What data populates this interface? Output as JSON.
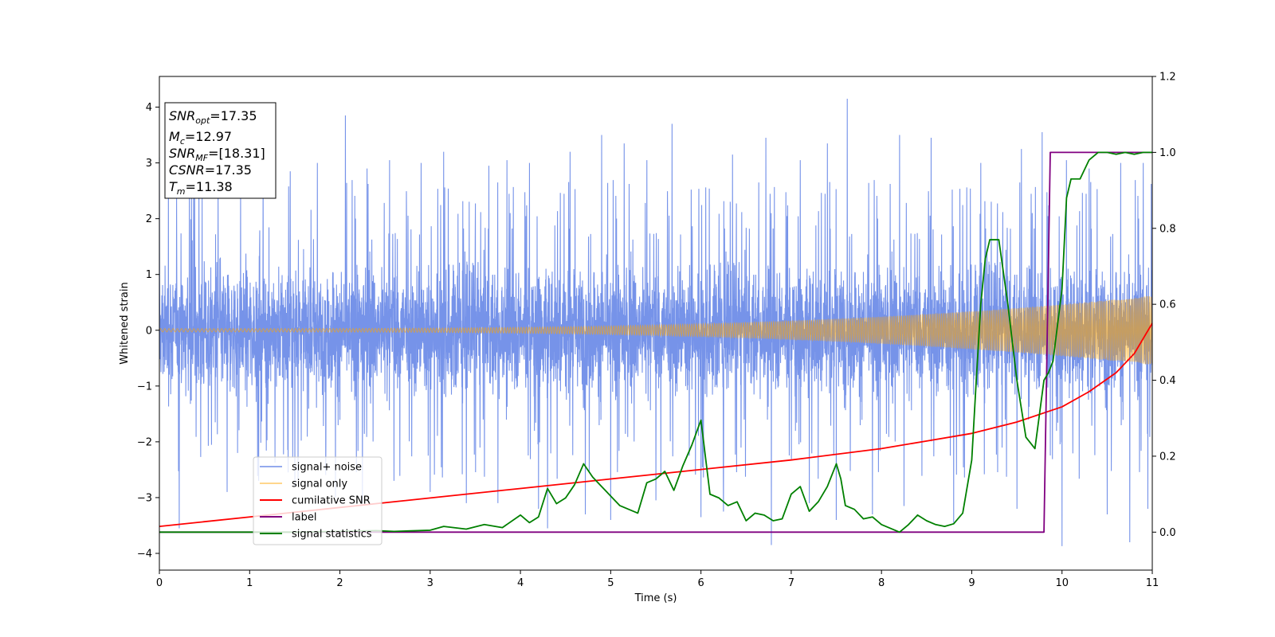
{
  "chart_data": {
    "type": "line",
    "xlabel": "Time (s)",
    "ylabel": "Whitened strain",
    "xlim": [
      0,
      11
    ],
    "ylim": [
      -4.3,
      4.55
    ],
    "y2lim": [
      -0.1,
      1.2
    ],
    "xticks": [
      "0",
      "1",
      "2",
      "3",
      "4",
      "5",
      "6",
      "7",
      "8",
      "9",
      "10",
      "11"
    ],
    "yticks": [
      "−4",
      "−3",
      "−2",
      "−1",
      "0",
      "1",
      "2",
      "3",
      "4"
    ],
    "y2ticks": [
      "0.0",
      "0.2",
      "0.4",
      "0.6",
      "0.8",
      "1.0",
      "1.2"
    ],
    "grid": false,
    "legend_position": "lower-left",
    "annotation": {
      "lines": [
        {
          "sym": "SNR",
          "sub": "opt",
          "val": "=17.35"
        },
        {
          "sym": "M",
          "sub": "c",
          "val": "=12.97"
        },
        {
          "sym": "SNR",
          "sub": "MF",
          "val": "=[18.31]"
        },
        {
          "sym": "CSNR",
          "sub": "",
          "val": "=17.35"
        },
        {
          "sym": "T",
          "sub": "m",
          "val": "=11.38"
        }
      ]
    },
    "series": [
      {
        "name": "signal+ noise",
        "color": "#4169e1",
        "axis": "left",
        "kind": "noise",
        "envelope_typical": 1.7,
        "envelope_peak": 4.15,
        "peaks": [
          [
            0.0,
            3.1
          ],
          [
            0.1,
            2.9
          ],
          [
            0.38,
            2.8
          ],
          [
            0.65,
            2.7
          ],
          [
            0.9,
            2.6
          ],
          [
            1.15,
            3.0
          ],
          [
            1.45,
            2.85
          ],
          [
            1.75,
            3.0
          ],
          [
            2.06,
            3.85
          ],
          [
            2.3,
            2.9
          ],
          [
            2.55,
            3.05
          ],
          [
            2.9,
            3.0
          ],
          [
            3.15,
            3.2
          ],
          [
            3.4,
            3.3
          ],
          [
            3.65,
            2.95
          ],
          [
            3.85,
            3.05
          ],
          [
            4.1,
            3.0
          ],
          [
            4.55,
            3.2
          ],
          [
            4.9,
            3.5
          ],
          [
            5.15,
            3.35
          ],
          [
            5.4,
            3.05
          ],
          [
            5.68,
            3.7
          ],
          [
            6.0,
            3.45
          ],
          [
            6.35,
            3.15
          ],
          [
            6.72,
            3.45
          ],
          [
            7.1,
            3.05
          ],
          [
            7.4,
            3.35
          ],
          [
            7.62,
            4.15
          ],
          [
            7.9,
            3.25
          ],
          [
            8.2,
            3.5
          ],
          [
            8.55,
            3.45
          ],
          [
            8.8,
            3.5
          ],
          [
            9.1,
            3.0
          ],
          [
            9.55,
            3.25
          ],
          [
            9.78,
            3.55
          ],
          [
            10.05,
            3.05
          ],
          [
            10.3,
            2.9
          ],
          [
            10.65,
            3.0
          ],
          [
            10.9,
            3.0
          ]
        ],
        "troughs": [
          [
            0.22,
            -3.55
          ],
          [
            0.75,
            -2.9
          ],
          [
            1.1,
            -2.7
          ],
          [
            1.5,
            -2.8
          ],
          [
            1.95,
            -3.0
          ],
          [
            2.25,
            -3.1
          ],
          [
            2.6,
            -2.7
          ],
          [
            3.0,
            -2.9
          ],
          [
            3.4,
            -3.1
          ],
          [
            3.75,
            -3.1
          ],
          [
            4.2,
            -3.2
          ],
          [
            4.3,
            -3.55
          ],
          [
            4.72,
            -3.3
          ],
          [
            5.0,
            -3.4
          ],
          [
            5.5,
            -3.05
          ],
          [
            6.0,
            -3.35
          ],
          [
            6.25,
            -3.25
          ],
          [
            6.78,
            -3.85
          ],
          [
            7.2,
            -3.1
          ],
          [
            7.5,
            -3.4
          ],
          [
            7.9,
            -3.3
          ],
          [
            8.25,
            -3.15
          ],
          [
            8.8,
            -3.45
          ],
          [
            9.5,
            -3.2
          ],
          [
            10.0,
            -3.87
          ],
          [
            10.5,
            -3.3
          ],
          [
            10.75,
            -3.8
          ],
          [
            10.95,
            -3.2
          ]
        ]
      },
      {
        "name": "signal only",
        "color": "#ffa500",
        "axis": "left",
        "kind": "chirp",
        "amplitude_start": 0.03,
        "amplitude_end": 0.62,
        "cycles": 420
      },
      {
        "name": "cumilative SNR",
        "color": "#ff0000",
        "axis": "right",
        "x": [
          0,
          1,
          2,
          3,
          4,
          5,
          6,
          7,
          8,
          8.5,
          9,
          9.5,
          10,
          10.3,
          10.6,
          10.8,
          11
        ],
        "y": [
          0.015,
          0.04,
          0.065,
          0.09,
          0.115,
          0.14,
          0.165,
          0.19,
          0.22,
          0.24,
          0.26,
          0.29,
          0.33,
          0.37,
          0.42,
          0.47,
          0.55
        ]
      },
      {
        "name": "label",
        "color": "#800080",
        "axis": "right",
        "x": [
          0,
          9.8,
          9.87,
          11
        ],
        "y": [
          0,
          0,
          1,
          1
        ]
      },
      {
        "name": "signal statistics",
        "color": "#008000",
        "axis": "right",
        "x": [
          0,
          1.0,
          1.5,
          2.0,
          2.4,
          2.6,
          3.0,
          3.15,
          3.4,
          3.6,
          3.8,
          4.0,
          4.1,
          4.2,
          4.3,
          4.4,
          4.5,
          4.6,
          4.7,
          4.8,
          4.9,
          5.0,
          5.1,
          5.2,
          5.3,
          5.4,
          5.5,
          5.6,
          5.7,
          5.8,
          5.9,
          6.0,
          6.1,
          6.2,
          6.3,
          6.4,
          6.5,
          6.6,
          6.7,
          6.8,
          6.9,
          7.0,
          7.1,
          7.2,
          7.3,
          7.4,
          7.5,
          7.55,
          7.6,
          7.7,
          7.8,
          7.9,
          8.0,
          8.1,
          8.2,
          8.3,
          8.4,
          8.5,
          8.6,
          8.7,
          8.8,
          8.9,
          9.0,
          9.05,
          9.1,
          9.15,
          9.2,
          9.25,
          9.3,
          9.4,
          9.5,
          9.6,
          9.7,
          9.8,
          9.85,
          9.9,
          10.0,
          10.05,
          10.1,
          10.2,
          10.3,
          10.4,
          10.5,
          10.6,
          10.7,
          10.8,
          10.9,
          11.0
        ],
        "y": [
          0.0,
          0.0,
          0.0,
          0.002,
          0.004,
          0.002,
          0.005,
          0.015,
          0.008,
          0.02,
          0.012,
          0.045,
          0.025,
          0.04,
          0.115,
          0.075,
          0.09,
          0.125,
          0.18,
          0.145,
          0.12,
          0.095,
          0.07,
          0.06,
          0.05,
          0.13,
          0.14,
          0.16,
          0.11,
          0.175,
          0.23,
          0.295,
          0.1,
          0.09,
          0.07,
          0.08,
          0.03,
          0.05,
          0.045,
          0.03,
          0.035,
          0.1,
          0.12,
          0.055,
          0.08,
          0.12,
          0.18,
          0.14,
          0.07,
          0.06,
          0.035,
          0.04,
          0.02,
          0.01,
          0.0,
          0.02,
          0.045,
          0.03,
          0.02,
          0.015,
          0.022,
          0.05,
          0.19,
          0.4,
          0.6,
          0.72,
          0.77,
          0.77,
          0.77,
          0.6,
          0.4,
          0.25,
          0.22,
          0.4,
          0.42,
          0.45,
          0.64,
          0.88,
          0.93,
          0.93,
          0.98,
          1.0,
          1.0,
          0.995,
          1.0,
          0.995,
          1.0,
          1.0
        ]
      }
    ]
  }
}
